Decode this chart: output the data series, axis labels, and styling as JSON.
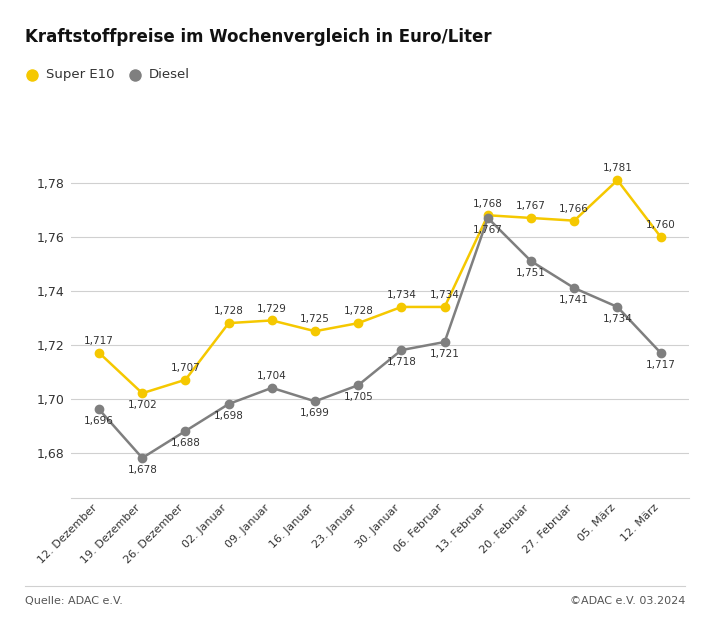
{
  "title": "Kraftstoffpreise im Wochenvergleich in Euro/Liter",
  "categories": [
    "12. Dezember",
    "19. Dezember",
    "26. Dezember",
    "02. Januar",
    "09. Januar",
    "16. Januar",
    "23. Januar",
    "30. Januar",
    "06. Februar",
    "13. Februar",
    "20. Februar",
    "27. Februar",
    "05. März",
    "12. März"
  ],
  "super_e10": [
    1.717,
    1.702,
    1.707,
    1.728,
    1.729,
    1.725,
    1.728,
    1.734,
    1.734,
    1.768,
    1.767,
    1.766,
    1.781,
    1.76
  ],
  "diesel": [
    1.696,
    1.678,
    1.688,
    1.698,
    1.704,
    1.699,
    1.705,
    1.718,
    1.721,
    1.767,
    1.751,
    1.741,
    1.734,
    1.717
  ],
  "super_color": "#F5C800",
  "diesel_color": "#7f7f7f",
  "ylim_min": 1.663,
  "ylim_max": 1.797,
  "yticks": [
    1.68,
    1.7,
    1.72,
    1.74,
    1.76,
    1.78
  ],
  "source_left": "Quelle: ADAC e.V.",
  "source_right": "©ADAC e.V. 03.2024",
  "legend_super": "Super E10",
  "legend_diesel": "Diesel",
  "background_color": "#ffffff",
  "grid_color": "#d0d0d0",
  "title_fontsize": 12,
  "label_fontsize": 7.5,
  "tick_fontsize": 9,
  "source_fontsize": 8,
  "legend_fontsize": 9.5,
  "line_width": 1.8,
  "marker_size": 6,
  "super_labels_above": [
    true,
    false,
    true,
    true,
    true,
    true,
    true,
    true,
    true,
    true,
    true,
    true,
    true,
    true
  ],
  "diesel_labels_above": [
    false,
    false,
    false,
    false,
    true,
    false,
    false,
    false,
    false,
    false,
    false,
    false,
    false,
    false
  ]
}
